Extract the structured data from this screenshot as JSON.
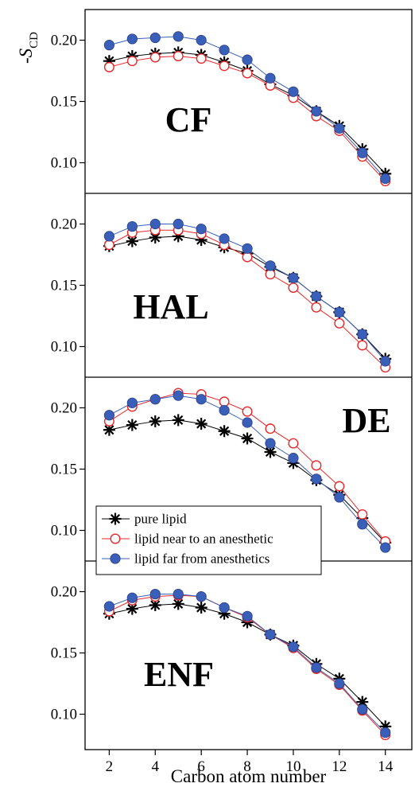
{
  "colors": {
    "pure_lipid": "#000000",
    "near": "#e8282a",
    "far": "#3a5fb8",
    "far_edge": "#2a3f8a"
  },
  "chart_data": {
    "type": "line",
    "layout": "four vertically stacked panels sharing the x axis",
    "xlabel": "Carbon atom number",
    "ylabel": "-SCD",
    "ylabel_parts": {
      "minus": "-",
      "symbol": "S",
      "subscript": "CD"
    },
    "x": [
      2,
      3,
      4,
      5,
      6,
      7,
      8,
      9,
      10,
      11,
      12,
      13,
      14
    ],
    "xlim": [
      0.95,
      15.15
    ],
    "ylim": [
      0.075,
      0.225
    ],
    "x_ticks": [
      "2",
      "4",
      "6",
      "8",
      "10",
      "12",
      "14"
    ],
    "y_ticks": [
      "0.10",
      "0.15",
      "0.20"
    ],
    "grid": false,
    "legend_position": "lower-left of third panel",
    "legend": [
      {
        "key": "pure",
        "label": "pure lipid",
        "marker": "asterisk",
        "color": "#000000"
      },
      {
        "key": "near",
        "label": "lipid near to an anesthetic",
        "marker": "open-circle",
        "color": "#e8282a"
      },
      {
        "key": "far",
        "label": "lipid far from anesthetics",
        "marker": "filled-circle",
        "color": "#3a5fb8"
      }
    ],
    "panels": [
      {
        "label": "CF",
        "series": [
          {
            "key": "pure",
            "values": [
              0.183,
              0.187,
              0.189,
              0.19,
              0.188,
              0.182,
              0.175,
              0.164,
              0.155,
              0.142,
              0.13,
              0.111,
              0.091
            ]
          },
          {
            "key": "near",
            "values": [
              0.178,
              0.183,
              0.186,
              0.187,
              0.185,
              0.179,
              0.173,
              0.163,
              0.153,
              0.138,
              0.126,
              0.105,
              0.085
            ]
          },
          {
            "key": "far",
            "values": [
              0.196,
              0.201,
              0.202,
              0.203,
              0.2,
              0.192,
              0.184,
              0.169,
              0.158,
              0.142,
              0.128,
              0.108,
              0.087
            ]
          }
        ]
      },
      {
        "label": "HAL",
        "series": [
          {
            "key": "pure",
            "values": [
              0.182,
              0.186,
              0.189,
              0.19,
              0.187,
              0.181,
              0.176,
              0.165,
              0.156,
              0.141,
              0.128,
              0.11,
              0.09
            ]
          },
          {
            "key": "near",
            "values": [
              0.183,
              0.193,
              0.195,
              0.195,
              0.192,
              0.183,
              0.173,
              0.159,
              0.148,
              0.132,
              0.119,
              0.101,
              0.083
            ]
          },
          {
            "key": "far",
            "values": [
              0.19,
              0.198,
              0.2,
              0.2,
              0.196,
              0.188,
              0.18,
              0.166,
              0.156,
              0.141,
              0.128,
              0.11,
              0.088
            ]
          }
        ]
      },
      {
        "label": "DE",
        "series": [
          {
            "key": "pure",
            "values": [
              0.182,
              0.186,
              0.189,
              0.19,
              0.187,
              0.181,
              0.175,
              0.164,
              0.155,
              0.141,
              0.129,
              0.11,
              0.09
            ]
          },
          {
            "key": "near",
            "values": [
              0.189,
              0.201,
              0.207,
              0.212,
              0.211,
              0.205,
              0.197,
              0.183,
              0.171,
              0.153,
              0.136,
              0.113,
              0.091
            ]
          },
          {
            "key": "far",
            "values": [
              0.194,
              0.204,
              0.207,
              0.21,
              0.207,
              0.198,
              0.188,
              0.171,
              0.159,
              0.142,
              0.127,
              0.105,
              0.086
            ]
          }
        ]
      },
      {
        "label": "ENF",
        "series": [
          {
            "key": "pure",
            "values": [
              0.182,
              0.186,
              0.189,
              0.19,
              0.187,
              0.182,
              0.175,
              0.165,
              0.156,
              0.141,
              0.129,
              0.11,
              0.09
            ]
          },
          {
            "key": "near",
            "values": [
              0.184,
              0.193,
              0.196,
              0.197,
              0.196,
              0.187,
              0.179,
              0.165,
              0.154,
              0.137,
              0.124,
              0.103,
              0.083
            ]
          },
          {
            "key": "far",
            "values": [
              0.188,
              0.195,
              0.198,
              0.198,
              0.196,
              0.187,
              0.18,
              0.165,
              0.155,
              0.138,
              0.125,
              0.104,
              0.085
            ]
          }
        ]
      }
    ]
  }
}
